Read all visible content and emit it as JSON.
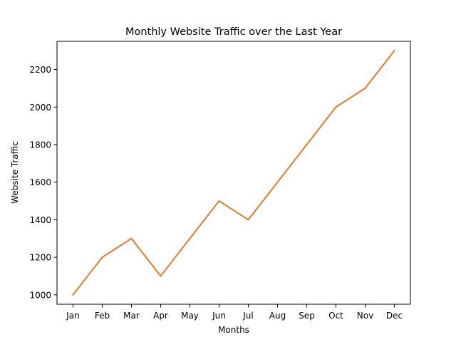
{
  "chart_data": {
    "type": "line",
    "title": "Monthly Website Traffic over the Last Year",
    "xlabel": "Months",
    "ylabel": "Website Traffic",
    "categories": [
      "Jan",
      "Feb",
      "Mar",
      "Apr",
      "May",
      "Jun",
      "Jul",
      "Aug",
      "Sep",
      "Oct",
      "Nov",
      "Dec"
    ],
    "values": [
      1000,
      1200,
      1300,
      1100,
      1300,
      1500,
      1400,
      1600,
      1800,
      2000,
      2100,
      2300
    ],
    "ylim": [
      950,
      2350
    ],
    "yticks": [
      1000,
      1200,
      1400,
      1600,
      1800,
      2000,
      2200
    ],
    "grid": false,
    "legend": "none",
    "line_color": "#e07b2e"
  }
}
